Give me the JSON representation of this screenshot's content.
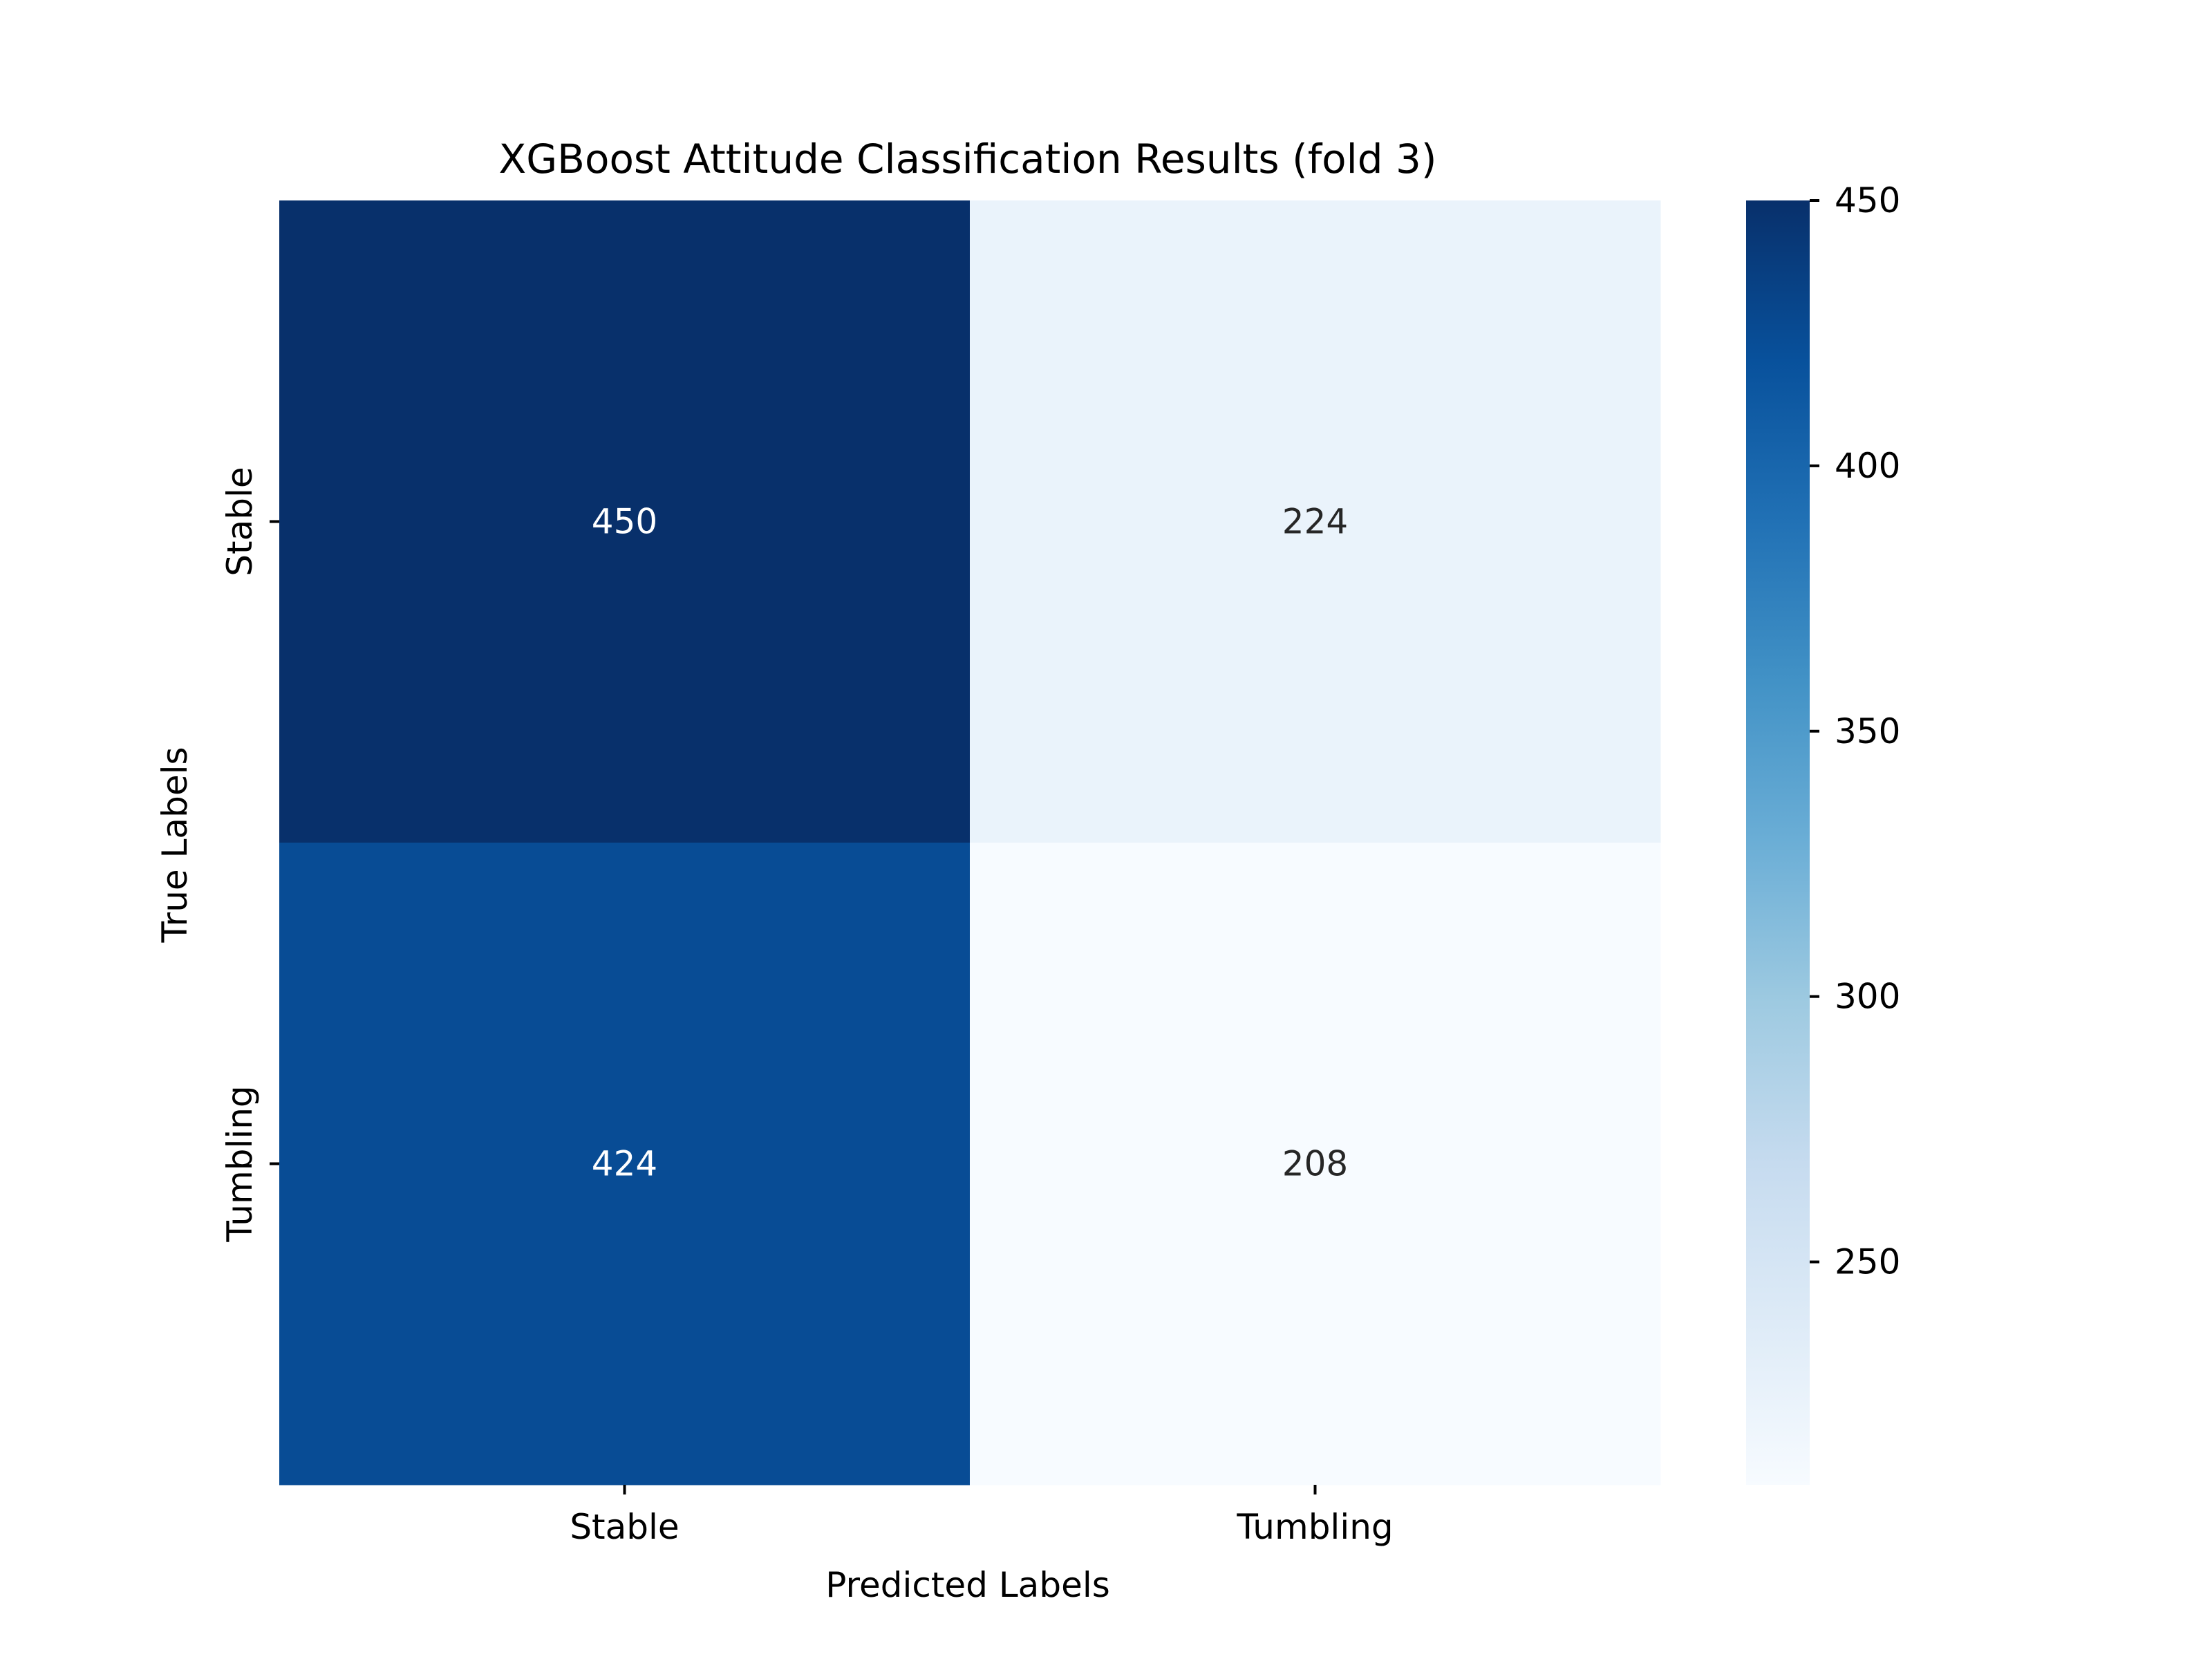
{
  "chart_data": {
    "type": "heatmap",
    "title": "XGBoost Attitude Classification Results (fold 3)",
    "xlabel": "Predicted Labels",
    "ylabel": "True Labels",
    "x_categories": [
      "Stable",
      "Tumbling"
    ],
    "y_categories": [
      "Stable",
      "Tumbling"
    ],
    "values": [
      [
        450,
        224
      ],
      [
        424,
        208
      ]
    ],
    "colormap": "Blues",
    "color_range": [
      208,
      450
    ],
    "colorbar_ticks": [
      250,
      300,
      350,
      400,
      450
    ],
    "colorbar_tick_labels": [
      "250",
      "300",
      "350",
      "400",
      "450"
    ],
    "legend": "colorbar-right",
    "grid": false
  }
}
